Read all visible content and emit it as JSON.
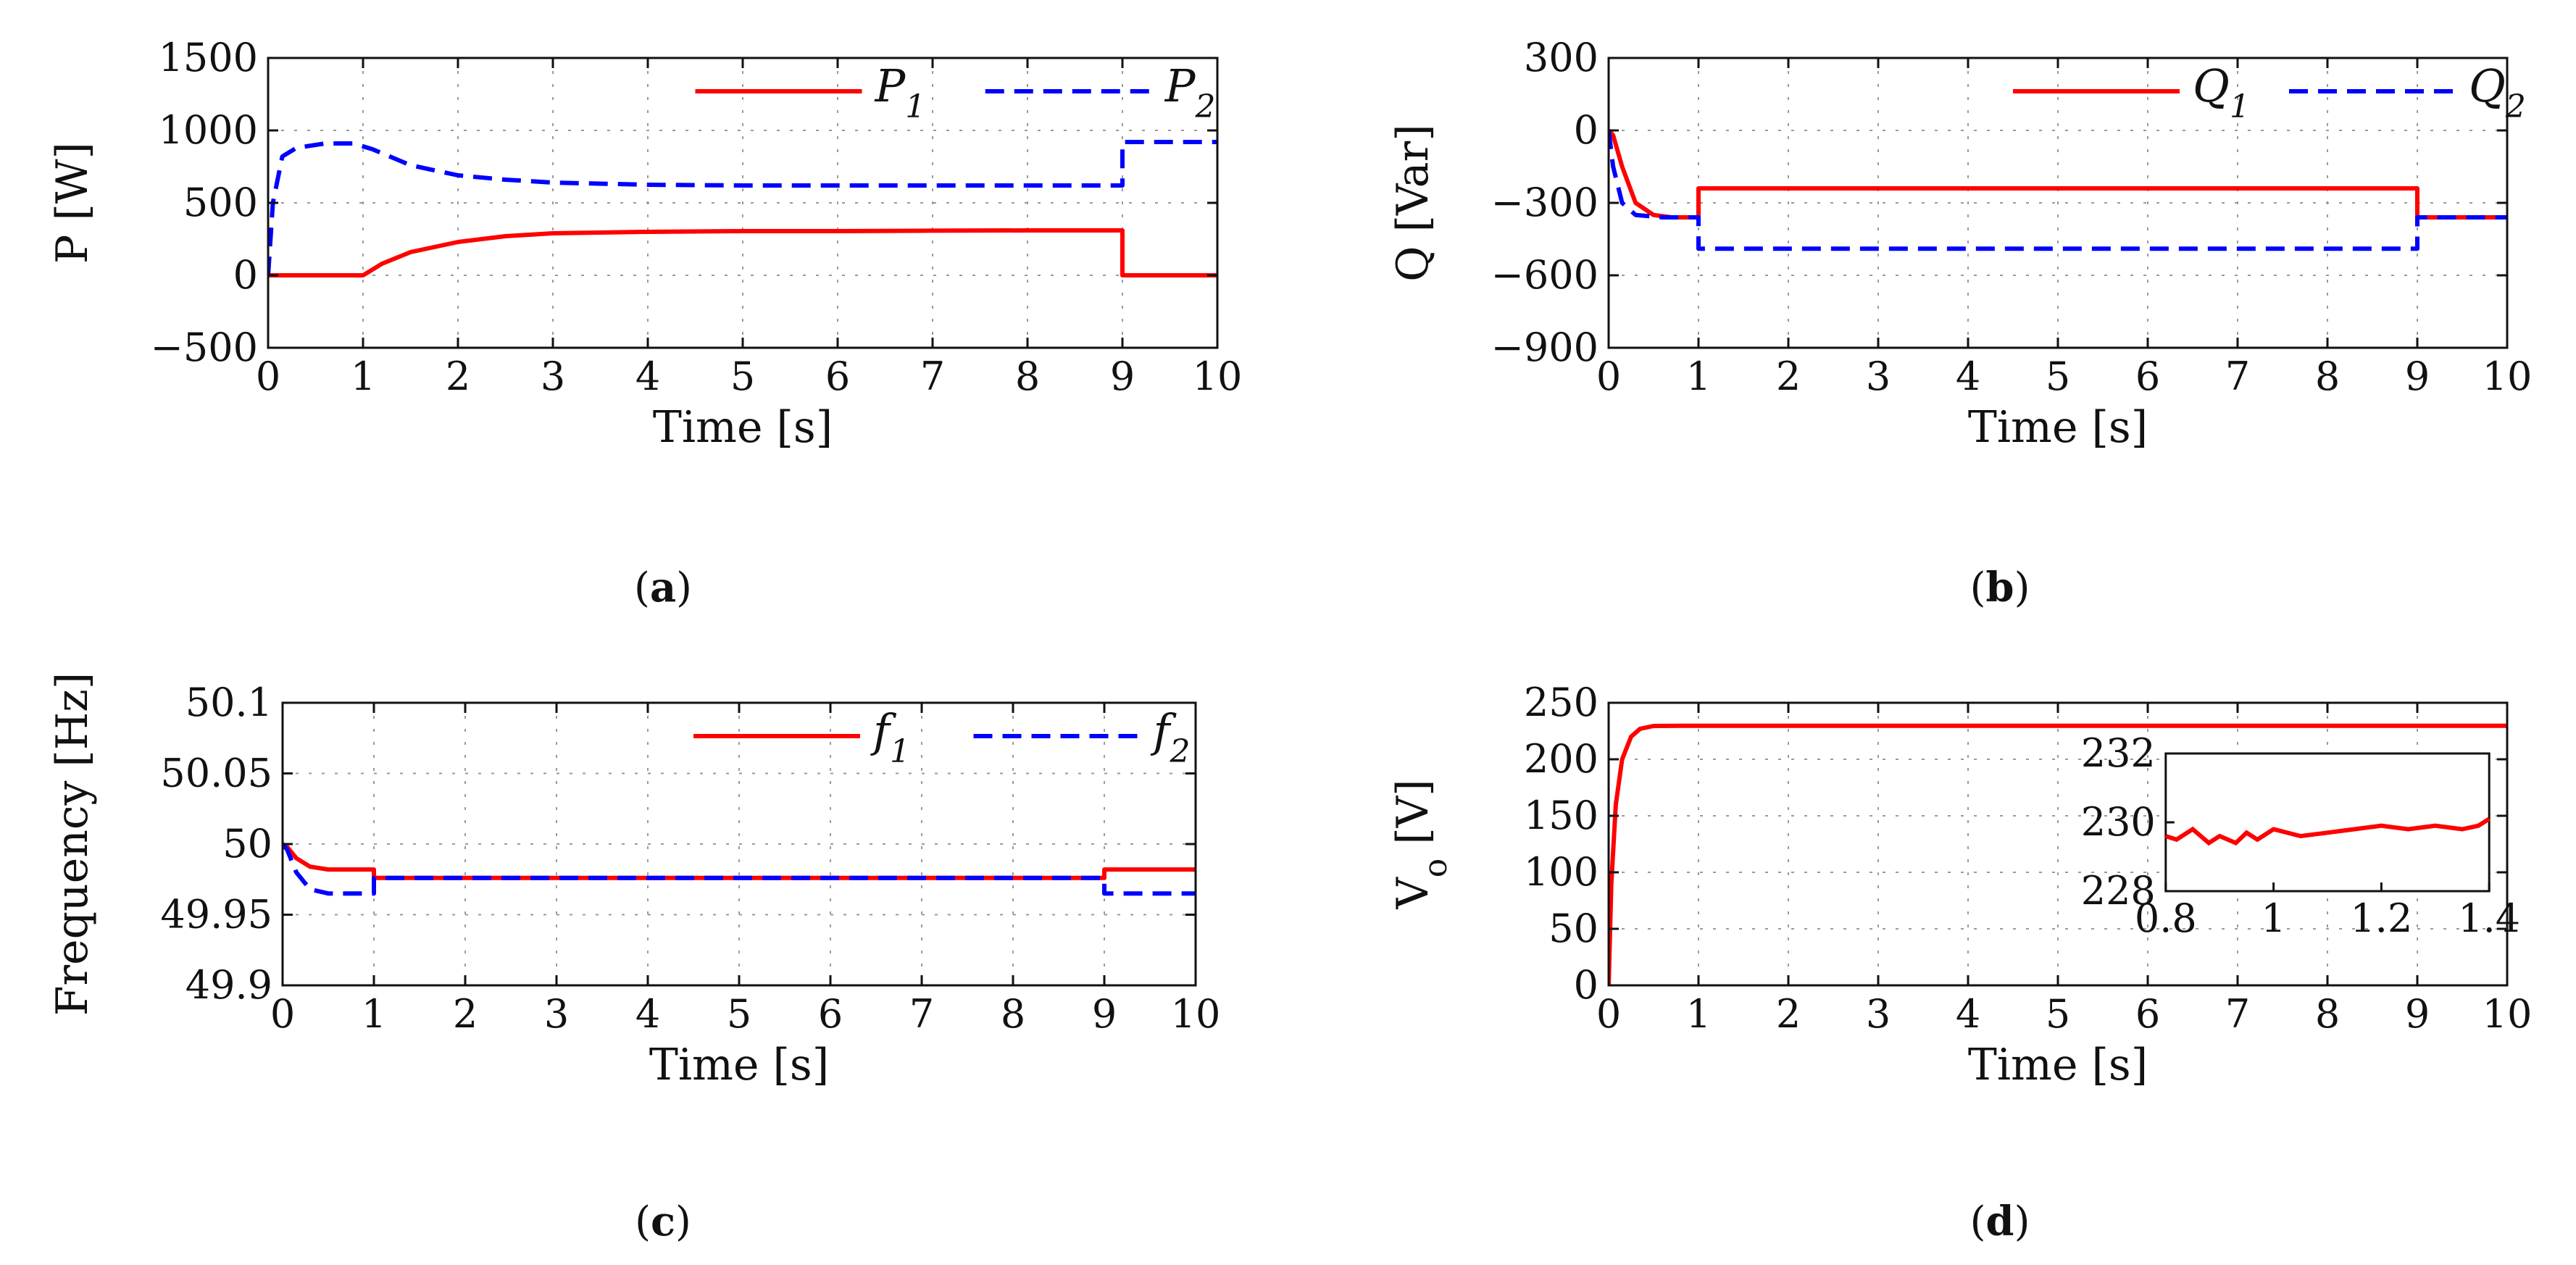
{
  "colors": {
    "series1": "#ff0000",
    "series2": "#0000ff"
  },
  "chart_data": [
    {
      "id": "a",
      "type": "line",
      "caption": "a",
      "xlabel": "Time [s]",
      "ylabel": "P [W]",
      "xlim": [
        0,
        10
      ],
      "ylim": [
        -500,
        1500
      ],
      "xticks": [
        0,
        1,
        2,
        3,
        4,
        5,
        6,
        7,
        8,
        9,
        10
      ],
      "xtick_labels": [
        "0",
        "1",
        "2",
        "3",
        "4",
        "5",
        "6",
        "7",
        "8",
        "9",
        "10"
      ],
      "yticks": [
        -500,
        0,
        500,
        1000,
        1500
      ],
      "ytick_labels": [
        "−500",
        "0",
        "500",
        "1000",
        "1500"
      ],
      "legend_position": "top-right",
      "series": [
        {
          "name": "P",
          "sub": "1",
          "style": "solid",
          "color": "#ff0000",
          "x": [
            0,
            0.9,
            1,
            1.2,
            1.5,
            2,
            2.5,
            3,
            4,
            5,
            6,
            7,
            8,
            9,
            9,
            10
          ],
          "y": [
            0,
            0,
            0,
            80,
            160,
            230,
            270,
            290,
            300,
            305,
            305,
            308,
            310,
            310,
            0,
            0
          ]
        },
        {
          "name": "P",
          "sub": "2",
          "style": "dashed",
          "color": "#0000ff",
          "x": [
            0,
            0.05,
            0.15,
            0.3,
            0.6,
            0.9,
            1.1,
            1.5,
            2,
            2.5,
            3,
            4,
            5,
            6,
            7,
            8,
            9,
            9,
            10
          ],
          "y": [
            0,
            500,
            820,
            880,
            910,
            910,
            870,
            760,
            690,
            660,
            640,
            625,
            620,
            620,
            620,
            620,
            620,
            920,
            920
          ]
        }
      ]
    },
    {
      "id": "b",
      "type": "line",
      "caption": "b",
      "xlabel": "Time [s]",
      "ylabel": "Q [Var]",
      "xlim": [
        0,
        10
      ],
      "ylim": [
        -900,
        300
      ],
      "xticks": [
        0,
        1,
        2,
        3,
        4,
        5,
        6,
        7,
        8,
        9,
        10
      ],
      "xtick_labels": [
        "0",
        "1",
        "2",
        "3",
        "4",
        "5",
        "6",
        "7",
        "8",
        "9",
        "10"
      ],
      "yticks": [
        -900,
        -600,
        -300,
        0,
        300
      ],
      "ytick_labels": [
        "−900",
        "−600",
        "−300",
        "0",
        "300"
      ],
      "legend_position": "top-right",
      "series": [
        {
          "name": "Q",
          "sub": "1",
          "style": "solid",
          "color": "#ff0000",
          "x": [
            0,
            0.05,
            0.15,
            0.3,
            0.5,
            0.7,
            1,
            1,
            2,
            3,
            4,
            5,
            6,
            7,
            8,
            9,
            9,
            10
          ],
          "y": [
            0,
            -20,
            -150,
            -300,
            -350,
            -360,
            -360,
            -240,
            -240,
            -240,
            -240,
            -240,
            -240,
            -240,
            -240,
            -240,
            -360,
            -360
          ]
        },
        {
          "name": "Q",
          "sub": "2",
          "style": "dashed",
          "color": "#0000ff",
          "x": [
            0,
            0.05,
            0.15,
            0.3,
            0.6,
            1,
            1,
            2,
            3,
            4,
            5,
            6,
            7,
            8,
            9,
            9,
            10
          ],
          "y": [
            0,
            -150,
            -300,
            -350,
            -360,
            -360,
            -490,
            -490,
            -490,
            -490,
            -490,
            -490,
            -490,
            -490,
            -490,
            -360,
            -360
          ]
        }
      ]
    },
    {
      "id": "c",
      "type": "line",
      "caption": "c",
      "xlabel": "Time [s]",
      "ylabel": "Frequency [Hz]",
      "xlim": [
        0,
        10
      ],
      "ylim": [
        49.9,
        50.1
      ],
      "xticks": [
        0,
        1,
        2,
        3,
        4,
        5,
        6,
        7,
        8,
        9,
        10
      ],
      "xtick_labels": [
        "0",
        "1",
        "2",
        "3",
        "4",
        "5",
        "6",
        "7",
        "8",
        "9",
        "10"
      ],
      "yticks": [
        49.9,
        49.95,
        50,
        50.05,
        50.1
      ],
      "ytick_labels": [
        "49.9",
        "49.95",
        "50",
        "50.05",
        "50.1"
      ],
      "legend_position": "top-right",
      "series": [
        {
          "name": "f",
          "sub": "1",
          "style": "solid",
          "color": "#ff0000",
          "x": [
            0,
            0.05,
            0.15,
            0.3,
            0.5,
            1,
            1,
            2,
            3,
            4,
            5,
            6,
            7,
            8,
            9,
            9,
            10
          ],
          "y": [
            50,
            49.998,
            49.99,
            49.984,
            49.982,
            49.982,
            49.976,
            49.976,
            49.976,
            49.976,
            49.976,
            49.976,
            49.976,
            49.976,
            49.976,
            49.982,
            49.982
          ]
        },
        {
          "name": "f",
          "sub": "2",
          "style": "dashed",
          "color": "#0000ff",
          "x": [
            0,
            0.05,
            0.15,
            0.3,
            0.5,
            1,
            1,
            2,
            3,
            4,
            5,
            6,
            7,
            8,
            9,
            9,
            10
          ],
          "y": [
            50,
            49.996,
            49.98,
            49.968,
            49.965,
            49.965,
            49.976,
            49.976,
            49.976,
            49.976,
            49.976,
            49.976,
            49.976,
            49.976,
            49.976,
            49.965,
            49.965
          ]
        }
      ]
    },
    {
      "id": "d",
      "type": "line",
      "caption": "d",
      "xlabel": "Time [s]",
      "ylabel": "V",
      "ylabel_sub": "o",
      "ylabel_unit": " [V]",
      "xlim": [
        0,
        10
      ],
      "ylim": [
        0,
        250
      ],
      "xticks": [
        0,
        1,
        2,
        3,
        4,
        5,
        6,
        7,
        8,
        9,
        10
      ],
      "xtick_labels": [
        "0",
        "1",
        "2",
        "3",
        "4",
        "5",
        "6",
        "7",
        "8",
        "9",
        "10"
      ],
      "yticks": [
        0,
        50,
        100,
        150,
        200,
        250
      ],
      "ytick_labels": [
        "0",
        "50",
        "100",
        "150",
        "200",
        "250"
      ],
      "series": [
        {
          "name": "V_o",
          "style": "solid",
          "color": "#ff0000",
          "x": [
            0,
            0.03,
            0.08,
            0.15,
            0.25,
            0.35,
            0.5,
            0.8,
            10
          ],
          "y": [
            0,
            90,
            160,
            200,
            220,
            227,
            229.5,
            229.6,
            229.7
          ]
        }
      ],
      "inset": {
        "xlim": [
          0.8,
          1.4
        ],
        "ylim": [
          228,
          232
        ],
        "xticks": [
          0.8,
          1,
          1.2,
          1.4
        ],
        "xtick_labels": [
          "0.8",
          "1",
          "1.2",
          "1.4"
        ],
        "yticks": [
          228,
          230,
          232
        ],
        "ytick_labels": [
          "228",
          "230",
          "232"
        ],
        "series": [
          {
            "name": "V_o zoom",
            "style": "solid",
            "color": "#ff0000",
            "x": [
              0.8,
              0.82,
              0.85,
              0.88,
              0.9,
              0.93,
              0.95,
              0.97,
              1,
              1.05,
              1.1,
              1.15,
              1.2,
              1.25,
              1.3,
              1.35,
              1.38,
              1.4
            ],
            "y": [
              229.6,
              229.5,
              229.8,
              229.4,
              229.6,
              229.4,
              229.7,
              229.5,
              229.8,
              229.6,
              229.7,
              229.8,
              229.9,
              229.8,
              229.9,
              229.8,
              229.9,
              230.1
            ]
          }
        ]
      }
    }
  ]
}
